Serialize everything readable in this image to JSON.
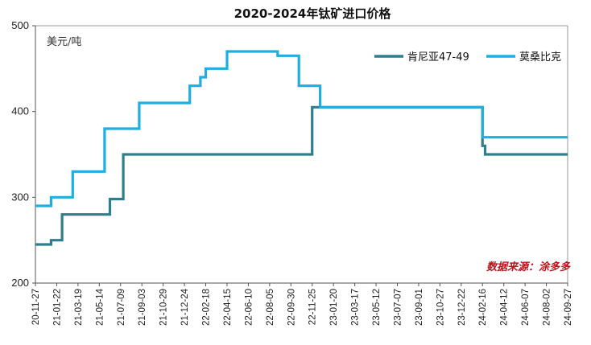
{
  "chart_data": {
    "type": "line",
    "title": "2020-2024年钛矿进口价格",
    "ylabel": "美元/吨",
    "ylim": [
      200,
      500
    ],
    "yticks": [
      200,
      300,
      400,
      500
    ],
    "categories": [
      "20-11-27",
      "21-01-22",
      "21-03-19",
      "21-05-14",
      "21-07-09",
      "21-09-03",
      "21-10-29",
      "21-12-24",
      "22-02-18",
      "22-04-15",
      "22-06-10",
      "22-08-05",
      "22-09-30",
      "22-11-25",
      "23-01-20",
      "23-03-17",
      "23-05-12",
      "23-07-07",
      "23-09-01",
      "23-10-27",
      "23-12-22",
      "24-02-16",
      "24-04-12",
      "24-06-07",
      "24-08-02",
      "24-09-27"
    ],
    "legend_position": "top-right",
    "source": "数据来源：涂多多",
    "series": [
      {
        "name": "肯尼亚47-49",
        "color": "#2e7e8e",
        "points": [
          [
            "20-11-27",
            245
          ],
          [
            "21-01-07",
            245
          ],
          [
            "21-01-07",
            250
          ],
          [
            "21-02-05",
            250
          ],
          [
            "21-02-05",
            280
          ],
          [
            "21-06-11",
            280
          ],
          [
            "21-06-11",
            298
          ],
          [
            "21-07-16",
            298
          ],
          [
            "21-07-16",
            350
          ],
          [
            "22-11-25",
            350
          ],
          [
            "22-11-25",
            405
          ],
          [
            "23-01-20",
            405
          ],
          [
            "23-05-12",
            405
          ],
          [
            "24-02-16",
            405
          ],
          [
            "24-02-16",
            360
          ],
          [
            "24-02-23",
            360
          ],
          [
            "24-02-23",
            350
          ],
          [
            "24-09-27",
            350
          ]
        ]
      },
      {
        "name": "莫桑比克",
        "color": "#1eaee0",
        "points": [
          [
            "20-11-27",
            290
          ],
          [
            "21-01-07",
            290
          ],
          [
            "21-01-07",
            300
          ],
          [
            "21-03-05",
            300
          ],
          [
            "21-03-05",
            330
          ],
          [
            "21-05-28",
            330
          ],
          [
            "21-05-28",
            380
          ],
          [
            "21-08-27",
            380
          ],
          [
            "21-08-27",
            410
          ],
          [
            "22-01-07",
            410
          ],
          [
            "22-01-07",
            430
          ],
          [
            "22-02-04",
            430
          ],
          [
            "22-02-04",
            440
          ],
          [
            "22-02-18",
            440
          ],
          [
            "22-02-18",
            450
          ],
          [
            "22-04-15",
            450
          ],
          [
            "22-04-15",
            470
          ],
          [
            "22-08-26",
            470
          ],
          [
            "22-08-26",
            465
          ],
          [
            "22-10-21",
            465
          ],
          [
            "22-10-21",
            430
          ],
          [
            "22-12-16",
            430
          ],
          [
            "22-12-16",
            405
          ],
          [
            "24-02-16",
            405
          ],
          [
            "24-02-16",
            370
          ],
          [
            "24-09-27",
            370
          ]
        ]
      }
    ]
  }
}
